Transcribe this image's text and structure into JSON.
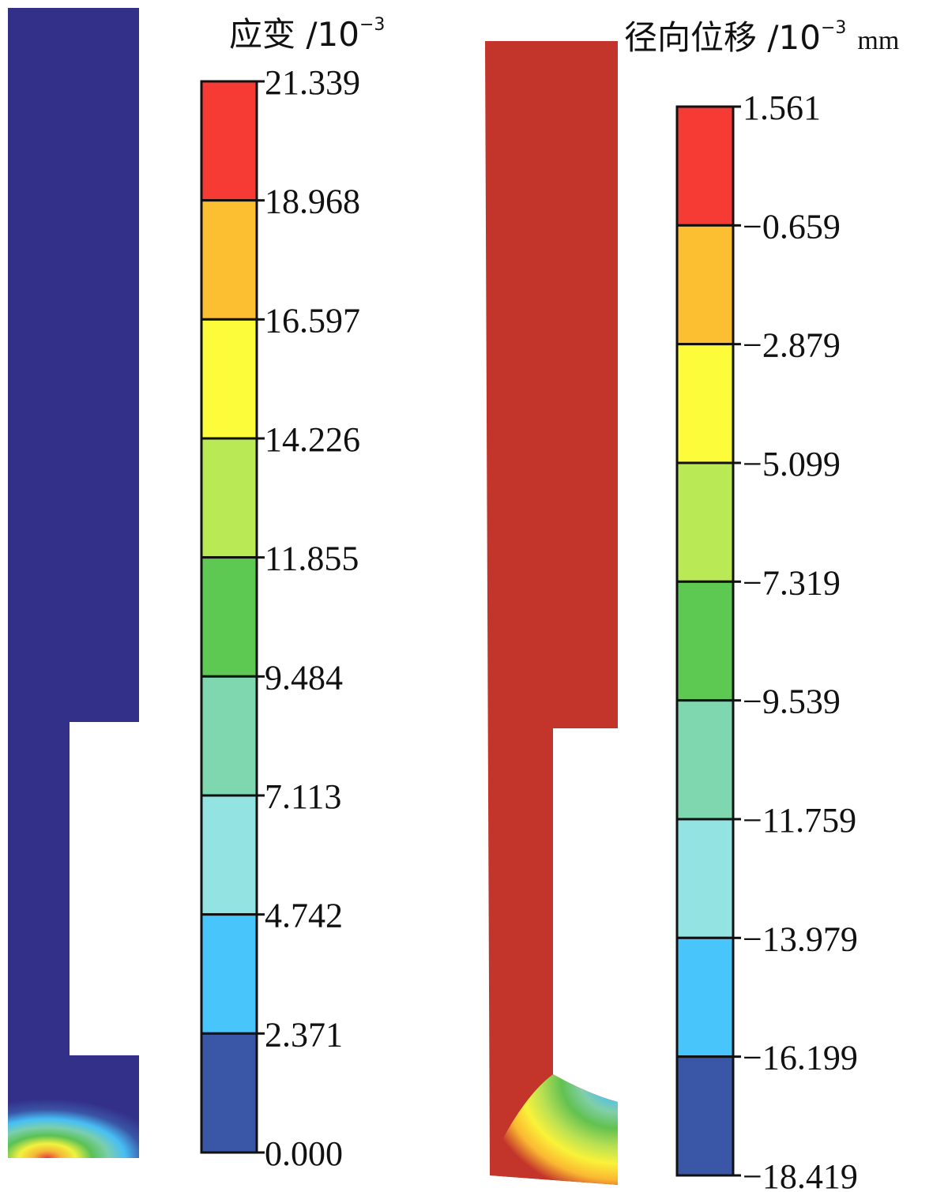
{
  "left_panel": {
    "title_prefix": "应变 /10",
    "title_exponent": "−3",
    "shape_color": "#33308a",
    "legend": {
      "labels": [
        "21.339",
        "18.968",
        "16.597",
        "14.226",
        "11.855",
        "9.484",
        "7.113",
        "4.742",
        "2.371",
        "0.000"
      ],
      "colors": [
        "#f63b35",
        "#fdbf32",
        "#fcfc3a",
        "#b9ea55",
        "#5dc952",
        "#7ed7ae",
        "#93e3e3",
        "#48c6fb",
        "#3a56a6"
      ]
    }
  },
  "right_panel": {
    "title_prefix": "径向位移 /10",
    "title_exponent": "−3",
    "title_unit": "mm",
    "shape_color": "#c3342a",
    "legend": {
      "labels": [
        "1.561",
        "−0.659",
        "−2.879",
        "−5.099",
        "−7.319",
        "−9.539",
        "−11.759",
        "−13.979",
        "−16.199",
        "−18.419"
      ],
      "colors": [
        "#f63b35",
        "#fdbf32",
        "#fcfc3a",
        "#b9ea55",
        "#5dc952",
        "#7ed7ae",
        "#93e3e3",
        "#48c6fb",
        "#3a56a6"
      ]
    }
  }
}
